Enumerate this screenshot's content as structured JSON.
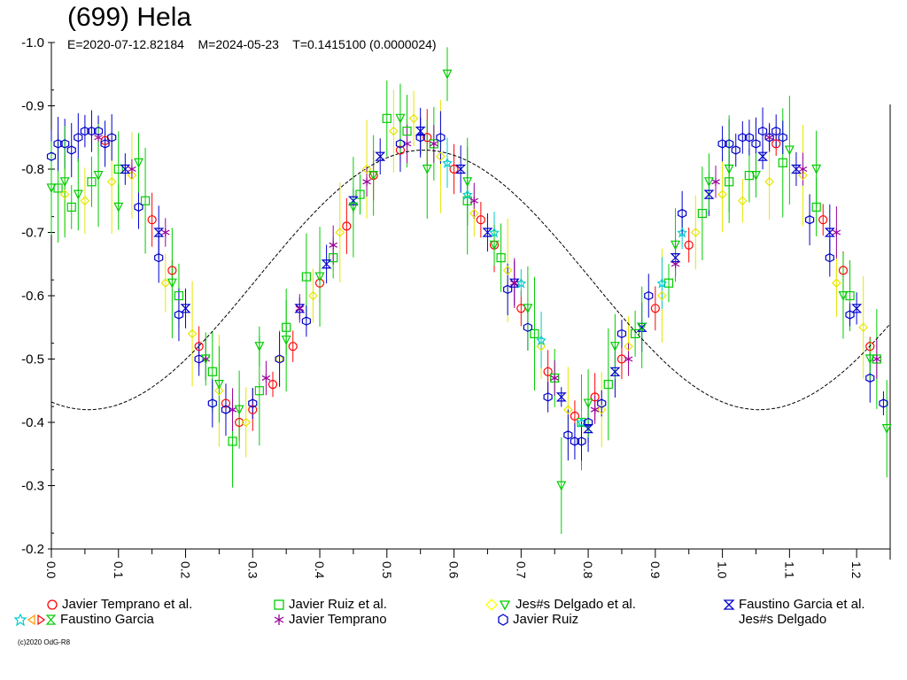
{
  "title": "(699) Hela",
  "subtitle": "E=2020-07-12.82184    M=2024-05-23    T=0.1415100 (0.0000024)",
  "credit": "(c)2020 OdG-R8",
  "chart_data": {
    "type": "scatter",
    "title": "(699) Hela",
    "xlim": [
      0.0,
      1.25
    ],
    "ylim": [
      -1.0,
      -0.2
    ],
    "y_inverted": true,
    "grid": false,
    "x_ticks": [
      "0.0",
      "0.1",
      "0.2",
      "0.3",
      "0.4",
      "0.5",
      "0.6",
      "0.7",
      "0.8",
      "0.9",
      "1.0",
      "1.1",
      "1.2"
    ],
    "y_ticks": [
      "-1.0",
      "-0.9",
      "-0.8",
      "-0.7",
      "-0.6",
      "-0.5",
      "-0.4",
      "-0.3",
      "-0.2"
    ],
    "model_curve": {
      "description": "fitted lightcurve",
      "mean": -0.625,
      "harmonics": [
        {
          "n": 2,
          "amplitude": 0.205,
          "phase_of_max": 0.555
        }
      ],
      "phase_of_brightest": 0.555,
      "phase_of_faintest": [
        0.275,
        0.78
      ]
    },
    "series": [
      {
        "name": "Javier Temprano et al.",
        "marker": "circle",
        "color": "#ff0000",
        "x": [
          0.08,
          0.15,
          0.18,
          0.22,
          0.26,
          0.28,
          0.3,
          0.33,
          0.36,
          0.4,
          0.44,
          0.48,
          0.52,
          0.56,
          0.6,
          0.64,
          0.66,
          0.7,
          0.74,
          0.78,
          0.81,
          0.85,
          0.9,
          0.95,
          1.08,
          1.15,
          1.18,
          1.22
        ],
        "y": [
          -0.845,
          -0.72,
          -0.64,
          -0.52,
          -0.43,
          -0.4,
          -0.42,
          -0.46,
          -0.52,
          -0.62,
          -0.71,
          -0.79,
          -0.83,
          -0.85,
          -0.8,
          -0.72,
          -0.68,
          -0.58,
          -0.48,
          -0.41,
          -0.44,
          -0.5,
          -0.58,
          -0.68,
          -0.84,
          -0.72,
          -0.64,
          -0.52
        ]
      },
      {
        "name": "Javier Ruiz et al.",
        "marker": "square",
        "color": "#00cc00",
        "x": [
          0.01,
          0.03,
          0.06,
          0.1,
          0.14,
          0.19,
          0.24,
          0.27,
          0.31,
          0.35,
          0.38,
          0.42,
          0.46,
          0.5,
          0.53,
          0.57,
          0.62,
          0.67,
          0.72,
          0.75,
          0.79,
          0.83,
          0.87,
          0.92,
          0.97,
          1.01,
          1.04,
          1.09,
          1.14,
          1.19,
          1.23
        ],
        "y": [
          -0.77,
          -0.74,
          -0.78,
          -0.8,
          -0.75,
          -0.6,
          -0.48,
          -0.37,
          -0.45,
          -0.55,
          -0.63,
          -0.66,
          -0.76,
          -0.88,
          -0.86,
          -0.84,
          -0.75,
          -0.66,
          -0.54,
          -0.47,
          -0.4,
          -0.46,
          -0.54,
          -0.62,
          -0.73,
          -0.78,
          -0.79,
          -0.81,
          -0.74,
          -0.6,
          -0.5
        ]
      },
      {
        "name": "Jes#s Delgado et al.",
        "marker": "diamond",
        "color": "#ffff00",
        "x": [
          0.02,
          0.05,
          0.09,
          0.12,
          0.17,
          0.21,
          0.25,
          0.29,
          0.34,
          0.39,
          0.43,
          0.47,
          0.51,
          0.54,
          0.58,
          0.63,
          0.68,
          0.73,
          0.77,
          0.82,
          0.86,
          0.91,
          0.96,
          1.0,
          1.03,
          1.07,
          1.12,
          1.17,
          1.21
        ],
        "y": [
          -0.76,
          -0.75,
          -0.78,
          -0.79,
          -0.62,
          -0.54,
          -0.45,
          -0.4,
          -0.5,
          -0.6,
          -0.7,
          -0.8,
          -0.86,
          -0.88,
          -0.82,
          -0.73,
          -0.64,
          -0.52,
          -0.42,
          -0.42,
          -0.52,
          -0.6,
          -0.7,
          -0.76,
          -0.75,
          -0.78,
          -0.79,
          -0.62,
          -0.55
        ]
      },
      {
        "name": "Faustino Garcia et al.",
        "marker": "hourglass",
        "color": "#0000cc",
        "x": [
          0.11,
          0.16,
          0.2,
          0.37,
          0.41,
          0.45,
          0.49,
          0.55,
          0.61,
          0.65,
          0.69,
          0.76,
          0.8,
          0.84,
          0.88,
          0.93,
          0.98,
          1.06,
          1.11,
          1.16,
          1.2
        ],
        "y": [
          -0.8,
          -0.7,
          -0.58,
          -0.58,
          -0.65,
          -0.75,
          -0.82,
          -0.86,
          -0.8,
          -0.7,
          -0.62,
          -0.44,
          -0.39,
          -0.48,
          -0.55,
          -0.66,
          -0.76,
          -0.82,
          -0.8,
          -0.7,
          -0.58
        ]
      },
      {
        "name": "Faustino Garcia",
        "marker": "star",
        "color": "#00cccc",
        "x": [
          0.59,
          0.62,
          0.66,
          0.7,
          0.73,
          0.79,
          0.91,
          0.94
        ],
        "y": [
          -0.81,
          -0.76,
          -0.7,
          -0.62,
          -0.53,
          -0.4,
          -0.62,
          -0.7
        ]
      },
      {
        "name": "Javier Temprano",
        "marker": "asterisk",
        "color": "#990099",
        "x": [
          0.07,
          0.12,
          0.17,
          0.23,
          0.27,
          0.32,
          0.37,
          0.42,
          0.47,
          0.53,
          0.57,
          0.63,
          0.69,
          0.75,
          0.81,
          0.86,
          0.93,
          0.99,
          1.07,
          1.12,
          1.17,
          1.23
        ],
        "y": [
          -0.85,
          -0.8,
          -0.7,
          -0.5,
          -0.42,
          -0.47,
          -0.58,
          -0.68,
          -0.78,
          -0.84,
          -0.84,
          -0.75,
          -0.62,
          -0.47,
          -0.42,
          -0.5,
          -0.65,
          -0.78,
          -0.85,
          -0.8,
          -0.7,
          -0.5
        ]
      },
      {
        "name": "Javier Ruiz",
        "marker": "hexagon",
        "color": "#0000cc",
        "x": [
          0.0,
          0.01,
          0.02,
          0.03,
          0.04,
          0.05,
          0.06,
          0.07,
          0.08,
          0.09,
          0.13,
          0.16,
          0.19,
          0.22,
          0.24,
          0.26,
          0.3,
          0.34,
          0.38,
          0.52,
          0.55,
          0.58,
          0.68,
          0.71,
          0.74,
          0.77,
          0.78,
          0.79,
          0.8,
          0.82,
          0.85,
          0.89,
          0.94,
          1.0,
          1.01,
          1.02,
          1.03,
          1.04,
          1.05,
          1.06,
          1.07,
          1.08,
          1.09,
          1.13,
          1.16,
          1.19,
          1.22,
          1.24
        ],
        "y": [
          -0.82,
          -0.84,
          -0.84,
          -0.83,
          -0.85,
          -0.86,
          -0.86,
          -0.86,
          -0.84,
          -0.85,
          -0.74,
          -0.66,
          -0.57,
          -0.5,
          -0.43,
          -0.42,
          -0.43,
          -0.5,
          -0.56,
          -0.84,
          -0.85,
          -0.85,
          -0.61,
          -0.55,
          -0.44,
          -0.38,
          -0.37,
          -0.37,
          -0.4,
          -0.43,
          -0.54,
          -0.6,
          -0.73,
          -0.84,
          -0.84,
          -0.83,
          -0.85,
          -0.85,
          -0.84,
          -0.86,
          -0.85,
          -0.86,
          -0.85,
          -0.72,
          -0.66,
          -0.57,
          -0.47,
          -0.43
        ]
      },
      {
        "name": "Jes#s Delgado",
        "marker": "triangle-down",
        "color": "#00cc00",
        "x": [
          0.0,
          0.02,
          0.04,
          0.07,
          0.1,
          0.13,
          0.18,
          0.23,
          0.25,
          0.28,
          0.31,
          0.35,
          0.4,
          0.45,
          0.48,
          0.52,
          0.56,
          0.59,
          0.62,
          0.66,
          0.71,
          0.76,
          0.8,
          0.84,
          0.88,
          0.93,
          0.98,
          1.01,
          1.05,
          1.1,
          1.14,
          1.18,
          1.22,
          1.245
        ],
        "y": [
          -0.77,
          -0.78,
          -0.76,
          -0.79,
          -0.74,
          -0.81,
          -0.62,
          -0.5,
          -0.46,
          -0.42,
          -0.52,
          -0.53,
          -0.63,
          -0.74,
          -0.79,
          -0.88,
          -0.8,
          -0.95,
          -0.78,
          -0.68,
          -0.58,
          -0.3,
          -0.43,
          -0.52,
          -0.55,
          -0.68,
          -0.78,
          -0.8,
          -0.79,
          -0.83,
          -0.8,
          -0.6,
          -0.5,
          -0.39
        ]
      }
    ]
  }
}
